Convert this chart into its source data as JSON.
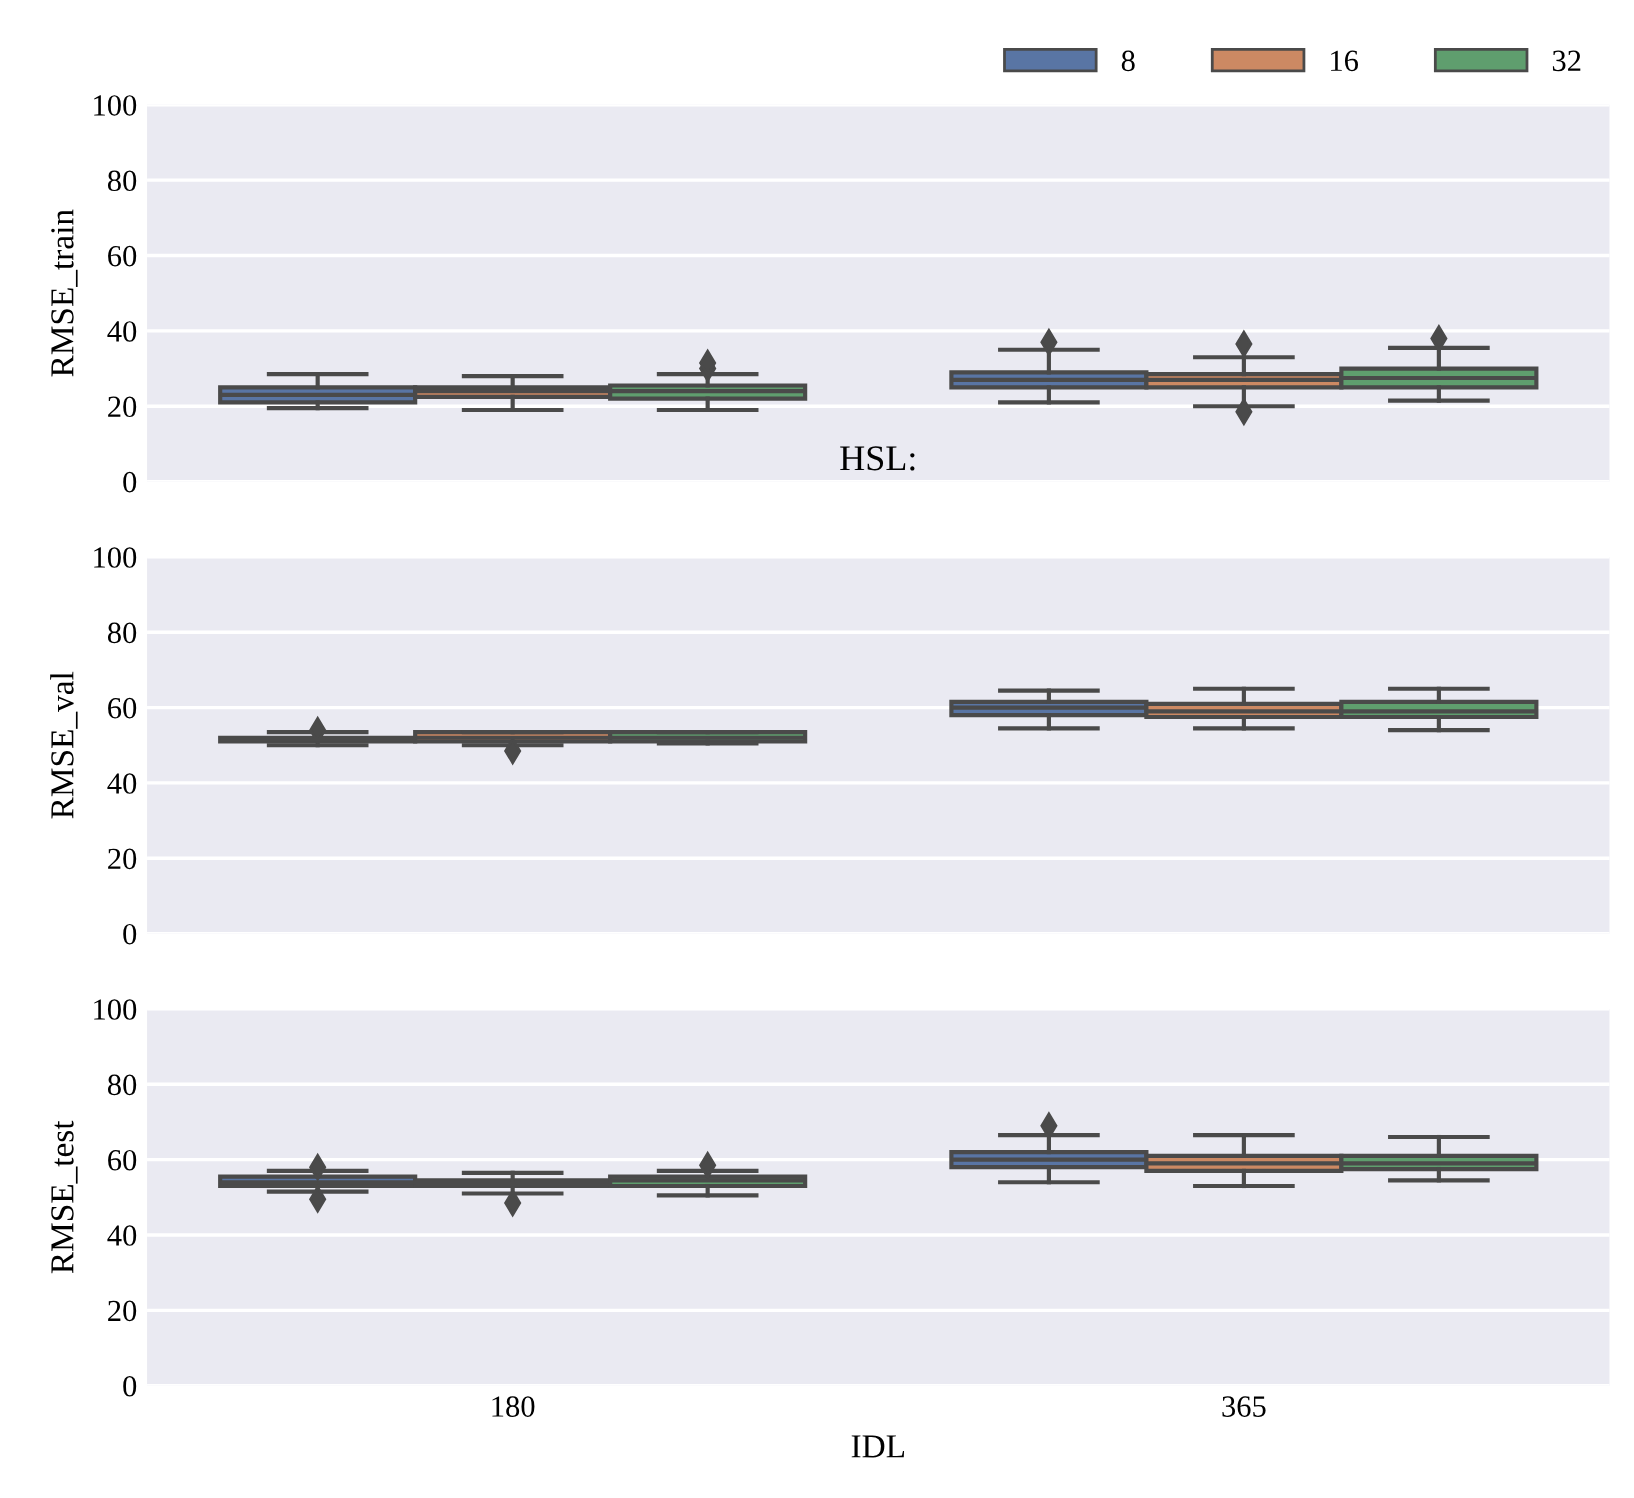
{
  "chart_data": [
    {
      "type": "box",
      "categories": [
        "180",
        "365"
      ],
      "ylabel": "RMSE_train",
      "ylim": [
        0,
        100
      ],
      "yticks": [
        0,
        20,
        40,
        60,
        80,
        100
      ],
      "grid": "y",
      "tick_labels": "y",
      "legend": "top right",
      "legend_title": "HSL:",
      "series": [
        {
          "name": "8",
          "color": "#5975a4",
          "boxes": [
            {
              "low": 19.5,
              "q1": 21,
              "median": 23,
              "q3": 25,
              "high": 28.5
            },
            {
              "low": 21,
              "q1": 25,
              "median": 27,
              "q3": 29,
              "high": 35,
              "outliers": [
                37
              ]
            }
          ]
        },
        {
          "name": "16",
          "color": "#cc8963",
          "boxes": [
            {
              "low": 19,
              "q1": 22.5,
              "median": 24,
              "q3": 25,
              "high": 28
            },
            {
              "low": 20,
              "q1": 25,
              "median": 27,
              "q3": 28.5,
              "high": 33,
              "outliers": [
                36.5,
                18.5
              ]
            }
          ]
        },
        {
          "name": "32",
          "color": "#5f9e6e",
          "boxes": [
            {
              "low": 19,
              "q1": 22,
              "median": 24,
              "q3": 25.5,
              "high": 28.5,
              "outliers": [
                30,
                31.5
              ]
            },
            {
              "low": 21.5,
              "q1": 25,
              "median": 27.5,
              "q3": 30,
              "high": 35.5,
              "outliers": [
                38
              ]
            }
          ]
        }
      ]
    },
    {
      "type": "box",
      "categories": [
        "180",
        "365"
      ],
      "ylabel": "RMSE_val",
      "ylim": [
        0,
        100
      ],
      "yticks": [
        0,
        20,
        40,
        60,
        80,
        100
      ],
      "grid": "y",
      "tick_labels": "y",
      "series": [
        {
          "color": "#5975a4",
          "boxes": [
            {
              "low": 50,
              "q1": 51,
              "median": 51.5,
              "q3": 52,
              "high": 53.5,
              "outliers": [
                54
              ]
            },
            {
              "low": 54.5,
              "q1": 58,
              "median": 60,
              "q3": 61.5,
              "high": 64.5
            }
          ]
        },
        {
          "color": "#cc8963",
          "boxes": [
            {
              "low": 50,
              "q1": 51,
              "median": 52,
              "q3": 53.5,
              "high": 53.5,
              "outliers": [
                48.5
              ]
            },
            {
              "low": 54.5,
              "q1": 57.5,
              "median": 59,
              "q3": 61,
              "high": 65
            }
          ]
        },
        {
          "color": "#5f9e6e",
          "boxes": [
            {
              "low": 50.5,
              "q1": 51,
              "median": 52,
              "q3": 53.5,
              "high": 53.5
            },
            {
              "low": 54,
              "q1": 57.5,
              "median": 59,
              "q3": 61.5,
              "high": 65
            }
          ]
        }
      ]
    },
    {
      "type": "box",
      "categories": [
        "180",
        "365"
      ],
      "xlabel": "IDL",
      "ylabel": "RMSE_test",
      "ylim": [
        0,
        100
      ],
      "yticks": [
        0,
        20,
        40,
        60,
        80,
        100
      ],
      "grid": "y",
      "series": [
        {
          "color": "#5975a4",
          "boxes": [
            {
              "low": 51.5,
              "q1": 53,
              "median": 54,
              "q3": 55.5,
              "high": 57,
              "outliers": [
                58,
                49.5
              ]
            },
            {
              "low": 54,
              "q1": 58,
              "median": 60,
              "q3": 62,
              "high": 66.5,
              "outliers": [
                69
              ]
            }
          ]
        },
        {
          "color": "#cc8963",
          "boxes": [
            {
              "low": 51,
              "q1": 53,
              "median": 53.5,
              "q3": 54.5,
              "high": 56.5,
              "outliers": [
                48.5
              ]
            },
            {
              "low": 53,
              "q1": 57,
              "median": 59,
              "q3": 61,
              "high": 66.5
            }
          ]
        },
        {
          "color": "#5f9e6e",
          "boxes": [
            {
              "low": 50.5,
              "q1": 53,
              "median": 54.5,
              "q3": 55.5,
              "high": 57,
              "outliers": [
                58.5
              ]
            },
            {
              "low": 54.5,
              "q1": 57.5,
              "median": 59,
              "q3": 61,
              "high": 66
            }
          ]
        }
      ]
    }
  ]
}
